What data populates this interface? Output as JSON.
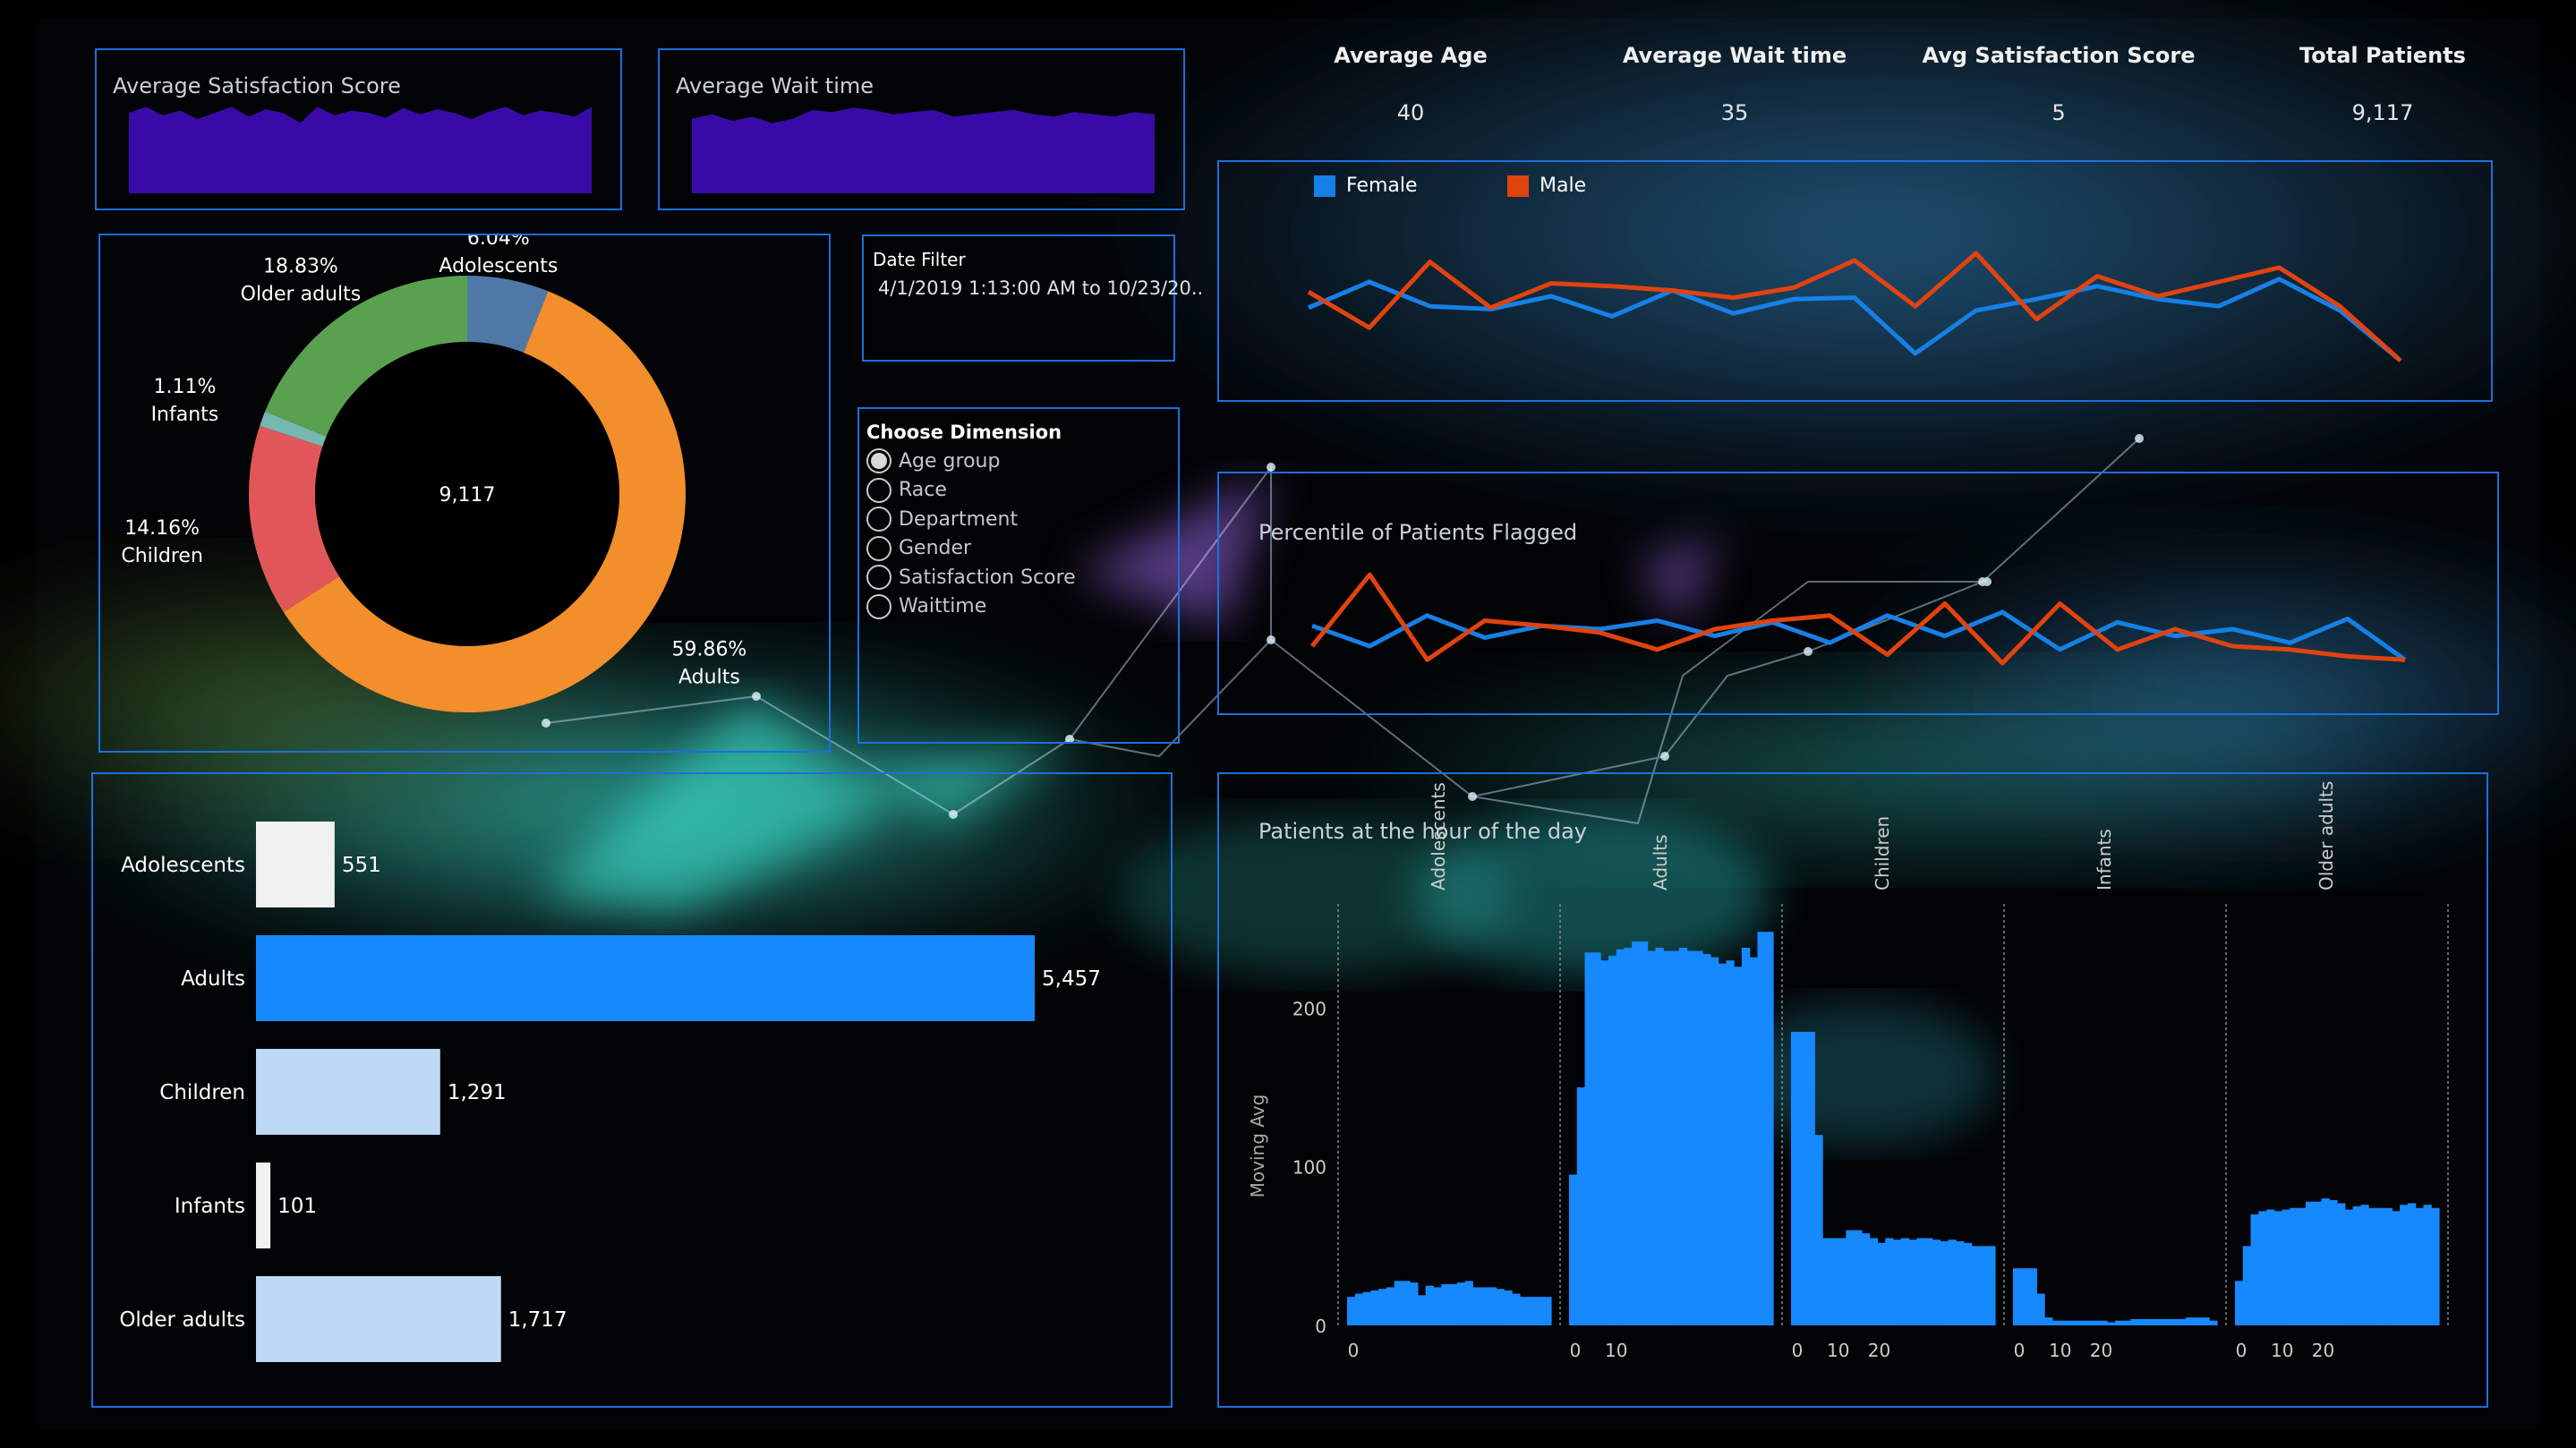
{
  "kpis": [
    {
      "label": "Average Age",
      "value": "40"
    },
    {
      "label": "Average Wait time",
      "value": "35"
    },
    {
      "label": "Avg Satisfaction Score",
      "value": "5"
    },
    {
      "label": "Total Patients",
      "value": "9,117"
    }
  ],
  "sparkline_panels": {
    "satisfaction": {
      "title": "Average Satisfaction Score"
    },
    "wait": {
      "title": "Average Wait time"
    }
  },
  "date_filter": {
    "label": "Date Filter",
    "value": "4/1/2019 1:13:00 AM to 10/23/20.."
  },
  "dimension": {
    "title": "Choose Dimension",
    "options": [
      "Age group",
      "Race",
      "Department",
      "Gender",
      "Satisfaction Score",
      "Waittime"
    ],
    "selected": "Age group"
  },
  "legend": {
    "female": {
      "label": "Female",
      "color": "#1680e6"
    },
    "male": {
      "label": "Male",
      "color": "#e0430f"
    }
  },
  "flagged": {
    "title": "Percentile of Patients Flagged"
  },
  "hourly": {
    "title": "Patients at the hour of the day",
    "ylabel": "Moving Avg"
  },
  "colors": {
    "panel_border": "#1c6fe0",
    "bar": "#1689ff",
    "sparkline": "#3a0aa8"
  },
  "chart_data": [
    {
      "type": "pie",
      "center_label": "9,117",
      "slices": [
        {
          "name": "Adolescents",
          "percent": "6.04%",
          "value": 551,
          "color": "#4e79a7"
        },
        {
          "name": "Adults",
          "percent": "59.86%",
          "value": 5457,
          "color": "#f28e2b"
        },
        {
          "name": "Children",
          "percent": "14.16%",
          "value": 1291,
          "color": "#e15759"
        },
        {
          "name": "Infants",
          "percent": "1.11%",
          "value": 101,
          "color": "#76b7b2"
        },
        {
          "name": "Older adults",
          "percent": "18.83%",
          "value": 1717,
          "color": "#59a14f"
        }
      ]
    },
    {
      "type": "bar",
      "orientation": "horizontal",
      "categories": [
        "Adolescents",
        "Adults",
        "Children",
        "Infants",
        "Older adults"
      ],
      "values": [
        551,
        5457,
        1291,
        101,
        1717
      ],
      "labels": [
        "551",
        "5,457",
        "1,291",
        "101",
        "1,717"
      ],
      "colors": [
        "#f1f1f1",
        "#1689ff",
        "#bcd9f6",
        "#f1f1f1",
        "#bcd9f6"
      ]
    },
    {
      "type": "area",
      "title": "Average Satisfaction Score",
      "values": [
        4.9,
        4.95,
        4.88,
        4.92,
        4.85,
        4.9,
        4.95,
        4.87,
        4.93,
        4.9,
        4.82,
        4.95,
        4.88,
        4.92,
        4.9,
        4.86,
        4.94,
        4.89,
        4.93,
        4.9,
        4.85,
        4.91,
        4.95,
        4.88,
        4.92,
        4.9,
        4.87,
        4.95
      ]
    },
    {
      "type": "area",
      "title": "Average Wait time",
      "values": [
        35.2,
        35.4,
        35.1,
        35.3,
        35.0,
        35.2,
        35.6,
        35.5,
        35.7,
        35.6,
        35.4,
        35.5,
        35.6,
        35.3,
        35.4,
        35.5,
        35.6,
        35.4,
        35.3,
        35.5,
        35.4,
        35.3,
        35.5,
        35.4
      ]
    },
    {
      "type": "line",
      "series": [
        {
          "name": "Female",
          "values": [
            42,
            60,
            43,
            41,
            50,
            36,
            54,
            38,
            48,
            49,
            10,
            40,
            48,
            57,
            48,
            43,
            62,
            40,
            5
          ]
        },
        {
          "name": "Male",
          "values": [
            53,
            28,
            74,
            42,
            59,
            57,
            54,
            49,
            56,
            75,
            43,
            80,
            34,
            64,
            50,
            60,
            70,
            43,
            5
          ]
        }
      ]
    },
    {
      "type": "line",
      "title": "Percentile of Patients Flagged",
      "series": [
        {
          "name": "Female",
          "values": [
            42,
            30,
            48,
            35,
            42,
            40,
            45,
            36,
            44,
            32,
            48,
            36,
            50,
            28,
            44,
            36,
            40,
            32,
            46,
            22
          ]
        },
        {
          "name": "Male",
          "values": [
            30,
            72,
            22,
            45,
            42,
            38,
            28,
            40,
            45,
            48,
            25,
            55,
            20,
            55,
            28,
            40,
            30,
            28,
            24,
            22
          ]
        }
      ]
    },
    {
      "type": "bar",
      "title": "Patients at the hour of the day",
      "ylabel": "Moving Avg",
      "yticks": [
        0,
        100,
        200
      ],
      "xticks": [
        0,
        10,
        20
      ],
      "panels": [
        {
          "name": "Adolescents",
          "values": [
            18,
            20,
            21,
            22,
            23,
            24,
            28,
            28,
            27,
            19,
            25,
            24,
            26,
            26,
            27,
            28,
            24,
            24,
            24,
            23,
            22,
            20,
            18,
            18,
            18,
            18
          ]
        },
        {
          "name": "Adults",
          "values": [
            95,
            150,
            235,
            235,
            230,
            233,
            237,
            238,
            242,
            242,
            236,
            238,
            236,
            236,
            238,
            236,
            236,
            234,
            232,
            228,
            230,
            226,
            238,
            232,
            248,
            248
          ]
        },
        {
          "name": "Children",
          "values": [
            185,
            185,
            185,
            120,
            55,
            55,
            55,
            60,
            60,
            58,
            55,
            52,
            55,
            54,
            55,
            54,
            55,
            55,
            54,
            53,
            54,
            53,
            52,
            50,
            50,
            50
          ]
        },
        {
          "name": "Infants",
          "values": [
            36,
            36,
            36,
            20,
            5,
            3,
            3,
            3,
            3,
            3,
            3,
            3,
            2,
            3,
            3,
            4,
            4,
            4,
            4,
            4,
            4,
            4,
            5,
            5,
            5,
            3
          ]
        },
        {
          "name": "Older adults",
          "values": [
            28,
            50,
            70,
            72,
            73,
            72,
            73,
            74,
            74,
            78,
            78,
            80,
            79,
            77,
            73,
            75,
            76,
            74,
            74,
            74,
            72,
            76,
            77,
            74,
            76,
            74
          ]
        }
      ]
    }
  ]
}
